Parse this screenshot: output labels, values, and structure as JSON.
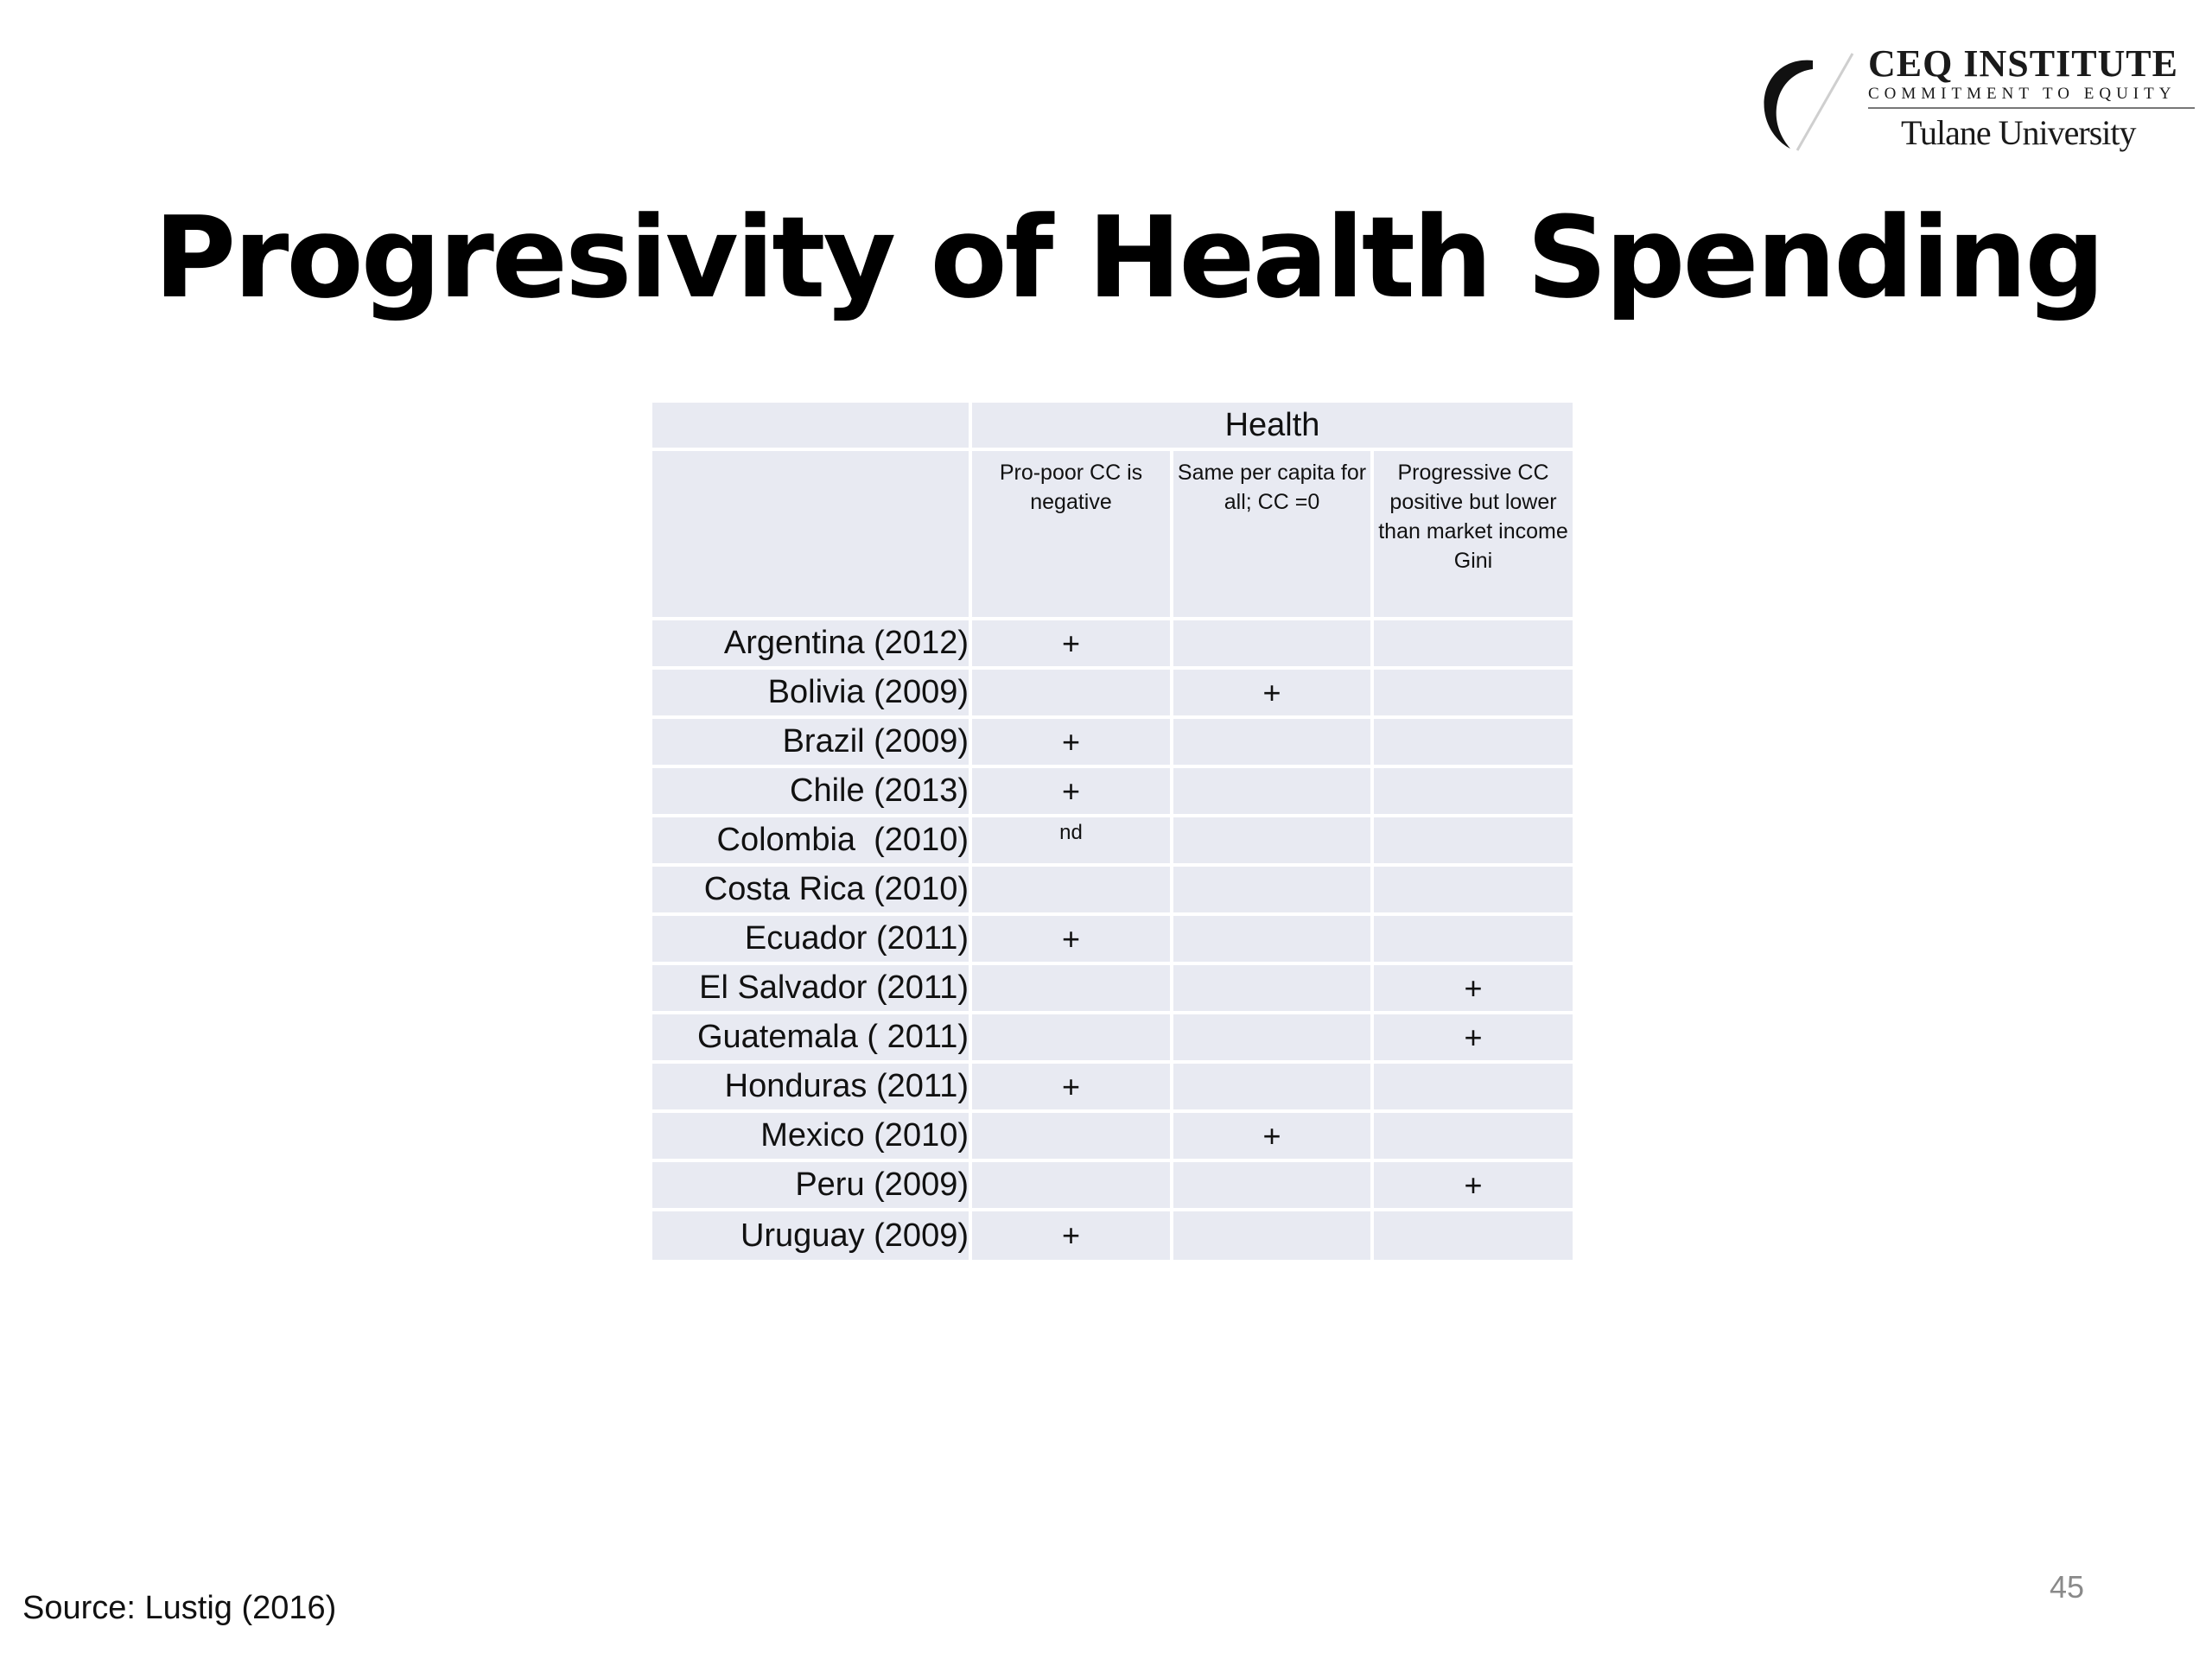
{
  "logo": {
    "title": "CEQ INSTITUTE",
    "subtitle": "COMMITMENT TO EQUITY",
    "university": "Tulane University"
  },
  "title": "Progresivity of Health Spending",
  "table": {
    "group_header": "Health",
    "columns": [
      "Pro-poor CC is negative",
      "Same per capita for all; CC =0",
      "Progressive CC positive but lower than market income Gini"
    ],
    "rows": [
      {
        "country": "Argentina (2012)",
        "c1": "+",
        "c2": "",
        "c3": ""
      },
      {
        "country": "Bolivia (2009)",
        "c1": "",
        "c2": "+",
        "c3": ""
      },
      {
        "country": "Brazil (2009)",
        "c1": "+",
        "c2": "",
        "c3": ""
      },
      {
        "country": "Chile (2013)",
        "c1": "+",
        "c2": "",
        "c3": ""
      },
      {
        "country": "Colombia  (2010)",
        "c1": "nd",
        "c2": "",
        "c3": ""
      },
      {
        "country": "Costa Rica (2010)",
        "c1": "",
        "c2": "",
        "c3": ""
      },
      {
        "country": "Ecuador (2011)",
        "c1": "+",
        "c2": "",
        "c3": ""
      },
      {
        "country": "El Salvador (2011)",
        "c1": "",
        "c2": "",
        "c3": "+"
      },
      {
        "country": "Guatemala ( 2011)",
        "c1": "",
        "c2": "",
        "c3": "+"
      },
      {
        "country": "Honduras (2011)",
        "c1": "+",
        "c2": "",
        "c3": ""
      },
      {
        "country": "Mexico (2010)",
        "c1": "",
        "c2": "+",
        "c3": ""
      },
      {
        "country": "Peru (2009)",
        "c1": "",
        "c2": "",
        "c3": "+"
      },
      {
        "country": "Uruguay (2009)",
        "c1": "+",
        "c2": "",
        "c3": ""
      }
    ]
  },
  "source": "Source: Lustig (2016)",
  "page_number": "45"
}
